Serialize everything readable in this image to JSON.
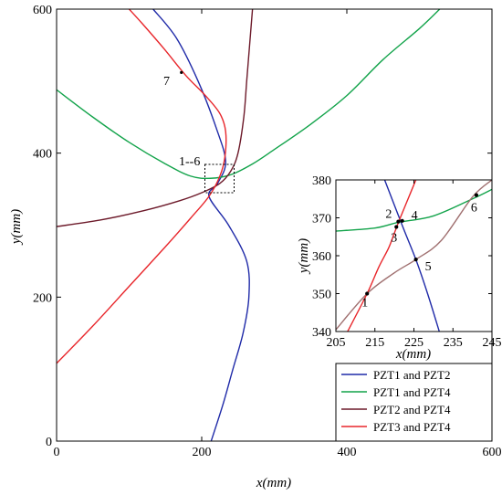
{
  "chart_data": [
    {
      "type": "line",
      "xlabel": "x(mm)",
      "ylabel": "y(mm)",
      "xlim": [
        0,
        600
      ],
      "ylim": [
        0,
        600
      ],
      "xticks": [
        0,
        200,
        400,
        600
      ],
      "yticks": [
        0,
        200,
        400,
        600
      ],
      "x_tick_labels": [
        "0",
        "200",
        "400",
        "600"
      ],
      "y_tick_labels": [
        "0",
        "200",
        "400",
        "600"
      ],
      "grid": false,
      "legend_position": "bottom-right",
      "series": [
        {
          "name": "PZT1 and PZT2",
          "color": "#1f2aa8",
          "points": [
            [
              133,
              600
            ],
            [
              165,
              560
            ],
            [
              195,
              500
            ],
            [
              220,
              435
            ],
            [
              233,
              388
            ],
            [
              222,
              358
            ],
            [
              210,
              340
            ],
            [
              237,
              300
            ],
            [
              262,
              250
            ],
            [
              265,
              200
            ],
            [
              257,
              150
            ],
            [
              243,
              100
            ],
            [
              229,
              50
            ],
            [
              213,
              0
            ]
          ]
        },
        {
          "name": "PZT1 and PZT4",
          "color": "#12a34a",
          "points": [
            [
              0,
              488
            ],
            [
              50,
              450
            ],
            [
              100,
              415
            ],
            [
              150,
              385
            ],
            [
              185,
              368
            ],
            [
              212,
              365
            ],
            [
              240,
              370
            ],
            [
              270,
              385
            ],
            [
              300,
              405
            ],
            [
              350,
              440
            ],
            [
              400,
              480
            ],
            [
              450,
              530
            ],
            [
              500,
              573
            ],
            [
              528,
              600
            ]
          ]
        },
        {
          "name": "PZT2 and PZT4",
          "color": "#6d1a2a",
          "points": [
            [
              0,
              298
            ],
            [
              60,
              307
            ],
            [
              120,
              320
            ],
            [
              170,
              334
            ],
            [
              200,
              345
            ],
            [
              225,
              358
            ],
            [
              240,
              375
            ],
            [
              250,
              400
            ],
            [
              258,
              450
            ],
            [
              262,
              500
            ],
            [
              266,
              550
            ],
            [
              270,
              600
            ]
          ]
        },
        {
          "name": "PZT3 and PZT4",
          "color": "#e8262b",
          "points": [
            [
              0,
              108
            ],
            [
              50,
              160
            ],
            [
              100,
              215
            ],
            [
              150,
              270
            ],
            [
              185,
              310
            ],
            [
              210,
              340
            ],
            [
              225,
              368
            ],
            [
              232,
              395
            ],
            [
              233,
              430
            ],
            [
              225,
              455
            ],
            [
              205,
              480
            ],
            [
              178,
              508
            ],
            [
              148,
              545
            ],
            [
              118,
              580
            ],
            [
              100,
              600
            ]
          ]
        }
      ],
      "annotations": [
        {
          "text": "7",
          "x": 166,
          "y": 510
        },
        {
          "text": "1--6",
          "x": 173,
          "y": 385
        }
      ]
    },
    {
      "type": "line",
      "xlabel": "x(mm)",
      "ylabel": "y(mm)",
      "xlim": [
        205,
        245
      ],
      "ylim": [
        340,
        380
      ],
      "xticks": [
        205,
        215,
        225,
        235,
        245
      ],
      "yticks": [
        340,
        350,
        360,
        370,
        380
      ],
      "x_tick_labels": [
        "205",
        "215",
        "225",
        "235",
        "245"
      ],
      "y_tick_labels": [
        "340",
        "350",
        "360",
        "370",
        "380"
      ],
      "grid": false,
      "series": [
        {
          "color": "#1f2aa8",
          "points": [
            [
              217.5,
              380
            ],
            [
              222,
              368
            ],
            [
              225.5,
              359
            ],
            [
              228.5,
              350
            ],
            [
              231.5,
              340
            ]
          ]
        },
        {
          "color": "#12a34a",
          "points": [
            [
              205,
              366.5
            ],
            [
              215,
              367.3
            ],
            [
              221,
              368.8
            ],
            [
              230,
              370.5
            ],
            [
              240,
              375
            ],
            [
              245,
              377.5
            ]
          ]
        },
        {
          "color": "#a07070",
          "points": [
            [
              205,
              340.5
            ],
            [
              213,
              350
            ],
            [
              220,
              355.5
            ],
            [
              225.5,
              359
            ],
            [
              232,
              364
            ],
            [
              240,
              375.5
            ],
            [
              245,
              380
            ]
          ]
        },
        {
          "color": "#e8262b",
          "points": [
            [
              208,
              340
            ],
            [
              213,
              350
            ],
            [
              216,
              357
            ],
            [
              218.5,
              362
            ],
            [
              220,
              366
            ],
            [
              221.5,
              370
            ],
            [
              223.5,
              375
            ],
            [
              225.5,
              380
            ]
          ]
        }
      ],
      "points": [
        {
          "label": "1",
          "x": 213,
          "y": 350
        },
        {
          "label": "2",
          "x": 221,
          "y": 369
        },
        {
          "label": "3",
          "x": 220.5,
          "y": 367.6
        },
        {
          "label": "4",
          "x": 222,
          "y": 369.2
        },
        {
          "label": "5",
          "x": 225.5,
          "y": 359
        },
        {
          "label": "6",
          "x": 241,
          "y": 376
        }
      ]
    }
  ]
}
